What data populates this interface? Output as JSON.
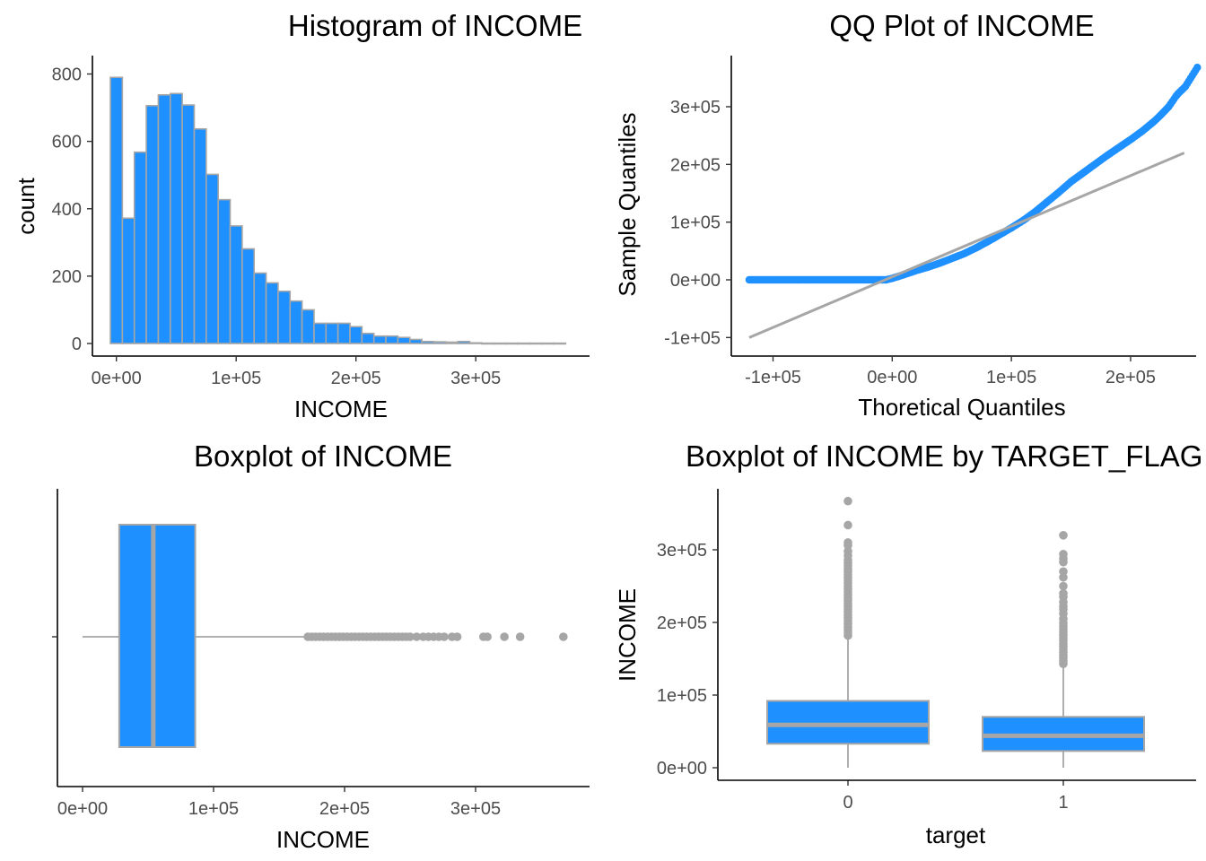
{
  "colors": {
    "fill": "#1e90ff",
    "outline": "#a6a6a6",
    "point": "#1e90ff",
    "axis": "#000000",
    "tick_text": "#4d4d4d"
  },
  "chart_data": [
    {
      "type": "bar",
      "title": "Histogram of INCOME",
      "xlabel": "INCOME",
      "ylabel": "count",
      "xlim": [
        -20000,
        395000
      ],
      "ylim": [
        0,
        820
      ],
      "x_ticks": [
        0,
        100000,
        200000,
        300000
      ],
      "x_tick_labels": [
        "0e+00",
        "1e+05",
        "2e+05",
        "3e+05"
      ],
      "y_ticks": [
        0,
        200,
        400,
        600,
        800
      ],
      "y_tick_labels": [
        "0",
        "200",
        "400",
        "600",
        "800"
      ],
      "bin_width": 10000,
      "bin_start": -5000,
      "values": [
        790,
        372,
        568,
        706,
        738,
        742,
        708,
        637,
        502,
        427,
        349,
        281,
        209,
        180,
        155,
        126,
        100,
        60,
        60,
        60,
        50,
        30,
        22,
        22,
        18,
        12,
        6,
        5,
        4,
        6,
        2,
        1,
        1,
        1,
        1,
        1,
        1,
        1
      ]
    },
    {
      "type": "scatter",
      "title": "QQ Plot of INCOME",
      "xlabel": "Thoretical Quantiles",
      "ylabel": "Sample Quantiles",
      "xlim": [
        -135000,
        255000
      ],
      "ylim": [
        -125000,
        375000
      ],
      "x_ticks": [
        -100000,
        0,
        100000,
        200000
      ],
      "x_tick_labels": [
        "-1e+05",
        "0e+00",
        "1e+05",
        "2e+05"
      ],
      "y_ticks": [
        -100000,
        0,
        100000,
        200000,
        300000
      ],
      "y_tick_labels": [
        "-1e+05",
        "0e+00",
        "1e+05",
        "2e+05",
        "3e+05"
      ],
      "points": [
        [
          -120000,
          0
        ],
        [
          -107000,
          0
        ],
        [
          -95000,
          0
        ],
        [
          -80000,
          0
        ],
        [
          -60000,
          0
        ],
        [
          -40000,
          0
        ],
        [
          -20000,
          0
        ],
        [
          -5000,
          0
        ],
        [
          0,
          2500
        ],
        [
          10000,
          9000
        ],
        [
          20000,
          16000
        ],
        [
          30000,
          22000
        ],
        [
          40000,
          29000
        ],
        [
          50000,
          37000
        ],
        [
          60000,
          45000
        ],
        [
          70000,
          55000
        ],
        [
          80000,
          66000
        ],
        [
          90000,
          78000
        ],
        [
          100000,
          90000
        ],
        [
          110000,
          103000
        ],
        [
          120000,
          118000
        ],
        [
          130000,
          135000
        ],
        [
          140000,
          152000
        ],
        [
          150000,
          170000
        ],
        [
          160000,
          185000
        ],
        [
          170000,
          200000
        ],
        [
          180000,
          215000
        ],
        [
          190000,
          229000
        ],
        [
          200000,
          243000
        ],
        [
          210000,
          258000
        ],
        [
          220000,
          275000
        ],
        [
          225000,
          285000
        ],
        [
          232000,
          300000
        ],
        [
          238000,
          318000
        ],
        [
          240000,
          323000
        ],
        [
          246000,
          335000
        ],
        [
          256000,
          368000
        ]
      ],
      "reference_line": [
        [
          -120000,
          -100000
        ],
        [
          245000,
          220000
        ]
      ]
    },
    {
      "type": "box",
      "title": "Boxplot of INCOME",
      "xlabel": "INCOME",
      "xlim": [
        -18000,
        385000
      ],
      "x_ticks": [
        0,
        100000,
        200000,
        300000
      ],
      "x_tick_labels": [
        "0e+00",
        "1e+05",
        "2e+05",
        "3e+05"
      ],
      "box": {
        "whisker_low": 0,
        "q1": 28000,
        "median": 54000,
        "q3": 86000,
        "whisker_high": 172000
      },
      "outliers": [
        172000,
        175000,
        178000,
        181000,
        184000,
        187000,
        190000,
        193000,
        196000,
        199000,
        202000,
        205000,
        208000,
        211000,
        214000,
        217000,
        220000,
        223000,
        226000,
        229000,
        232000,
        235000,
        238000,
        241000,
        244000,
        247000,
        250000,
        255000,
        260000,
        264000,
        268000,
        272000,
        276000,
        282000,
        286000,
        306000,
        309000,
        322000,
        334000,
        367000
      ]
    },
    {
      "type": "box",
      "title": "Boxplot of INCOME by TARGET_FLAG",
      "xlabel": "target",
      "ylabel": "INCOME",
      "categories": [
        "0",
        "1"
      ],
      "ylim": [
        -18000,
        385000
      ],
      "y_ticks": [
        0,
        100000,
        200000,
        300000
      ],
      "y_tick_labels": [
        "0e+00",
        "1e+05",
        "2e+05",
        "3e+05"
      ],
      "boxes": [
        {
          "category": "0",
          "whisker_low": 0,
          "q1": 33000,
          "median": 59000,
          "q3": 92000,
          "whisker_high": 180000,
          "outliers": [
            182000,
            186000,
            190000,
            194000,
            198000,
            202000,
            206000,
            210000,
            214000,
            218000,
            222000,
            226000,
            230000,
            234000,
            238000,
            242000,
            246000,
            250000,
            254000,
            258000,
            262000,
            266000,
            270000,
            274000,
            278000,
            282000,
            286000,
            292000,
            298000,
            306000,
            310000,
            334000,
            367000
          ]
        },
        {
          "category": "1",
          "whisker_low": 0,
          "q1": 23000,
          "median": 44000,
          "q3": 70000,
          "whisker_high": 140000,
          "outliers": [
            143000,
            147000,
            151000,
            155000,
            159000,
            163000,
            167000,
            171000,
            175000,
            179000,
            183000,
            187000,
            191000,
            195000,
            199000,
            205000,
            212000,
            218000,
            222000,
            228000,
            235000,
            240000,
            250000,
            262000,
            270000,
            283000,
            288000,
            294000,
            320000
          ]
        }
      ]
    }
  ]
}
